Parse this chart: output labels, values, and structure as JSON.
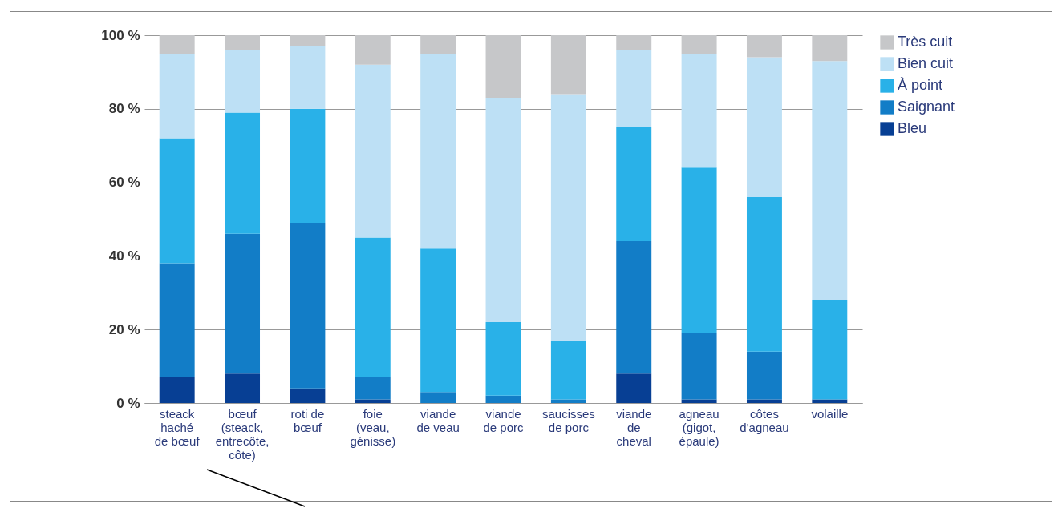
{
  "chart_data": {
    "type": "bar",
    "stacked": true,
    "categories": [
      "steack haché de bœuf",
      "bœuf (steack, entrecôte, côte)",
      "roti de bœuf",
      "foie (veau, génisse)",
      "viande de veau",
      "viande de porc",
      "saucisses de porc",
      "viande de cheval",
      "agneau (gigot, épaule)",
      "côtes d'agneau",
      "volaille"
    ],
    "series": [
      {
        "name": "Bleu",
        "color": "#073f94",
        "values": [
          7,
          8,
          4,
          1,
          0,
          0,
          0,
          8,
          1,
          1,
          1
        ]
      },
      {
        "name": "Saignant",
        "color": "#127dc7",
        "values": [
          31,
          38,
          45,
          6,
          3,
          2,
          1,
          36,
          18,
          13,
          0
        ]
      },
      {
        "name": "À point",
        "color": "#29b1e8",
        "values": [
          34,
          33,
          31,
          38,
          39,
          20,
          16,
          31,
          45,
          42,
          27
        ]
      },
      {
        "name": "Bien cuit",
        "color": "#bde0f5",
        "values": [
          23,
          17,
          17,
          47,
          53,
          61,
          67,
          21,
          31,
          38,
          65
        ]
      },
      {
        "name": "Très cuit",
        "color": "#c6c7c9",
        "values": [
          5,
          4,
          3,
          8,
          5,
          17,
          16,
          4,
          5,
          6,
          7
        ]
      }
    ],
    "ylim": [
      0,
      100
    ],
    "yticks": [
      {
        "value": 0,
        "label": "0 %"
      },
      {
        "value": 20,
        "label": "20 %"
      },
      {
        "value": 40,
        "label": "40 %"
      },
      {
        "value": 60,
        "label": "60 %"
      },
      {
        "value": 80,
        "label": "80 %"
      },
      {
        "value": 100,
        "label": "100 %"
      }
    ],
    "grid": "y",
    "legend": "top right"
  }
}
